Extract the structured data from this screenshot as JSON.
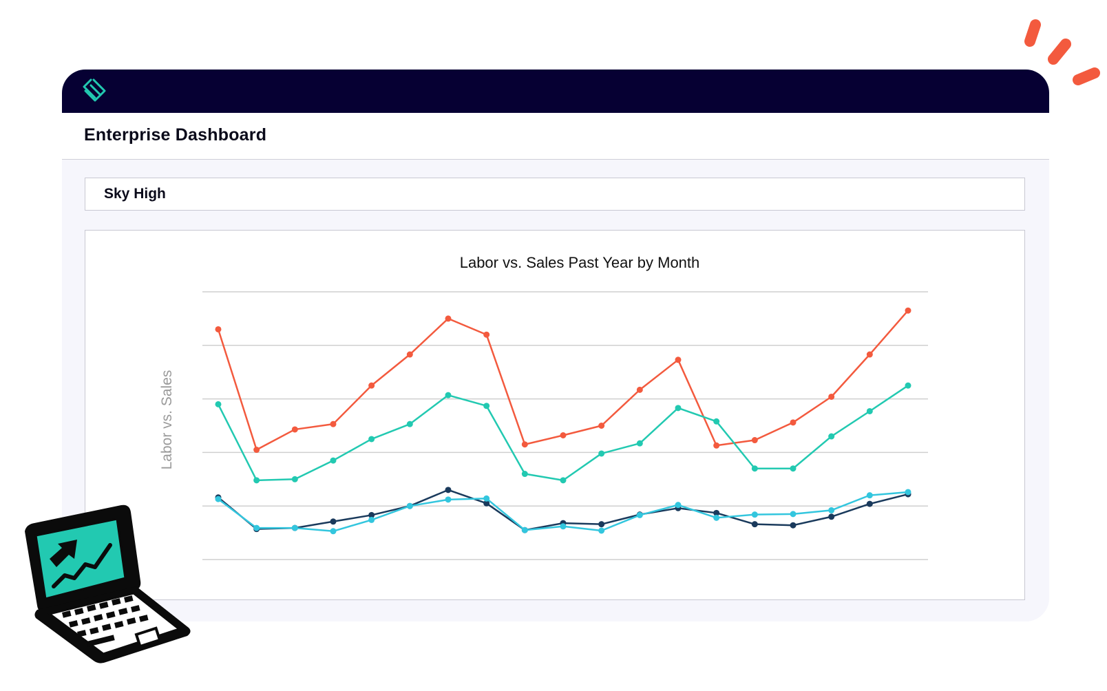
{
  "header": {
    "logo_icon": "diamond-logo-icon",
    "title": "Enterprise Dashboard"
  },
  "location": {
    "name": "Sky High"
  },
  "colors": {
    "topbar": "#060033",
    "series_sales": "#f35a3e",
    "series_teal": "#22c9b1",
    "series_navy": "#1a3a5c",
    "series_cyan": "#33c6de",
    "accent_orange": "#f35a3e"
  },
  "decorations": {
    "laptop_icon": "laptop-trend-up-icon",
    "burst_icon": "orange-burst-icon"
  },
  "chart_data": {
    "type": "line",
    "title": "Labor vs. Sales Past Year by Month",
    "ylabel": "Labor vs. Sales",
    "xlabel": "",
    "ylim": [
      0,
      5
    ],
    "grid": true,
    "legend": "none",
    "x": [
      1,
      2,
      3,
      4,
      5,
      6,
      7,
      8,
      9,
      10,
      11,
      12,
      13,
      14,
      15,
      16,
      17,
      18,
      19
    ],
    "series": [
      {
        "color": "#f35a3e",
        "values": [
          4.3,
          2.05,
          2.43,
          2.53,
          3.25,
          3.83,
          4.5,
          4.2,
          2.15,
          2.32,
          2.5,
          3.17,
          3.73,
          2.13,
          2.23,
          2.56,
          3.04,
          3.83,
          4.65
        ]
      },
      {
        "color": "#22c9b1",
        "values": [
          2.9,
          1.48,
          1.5,
          1.85,
          2.25,
          2.53,
          3.07,
          2.87,
          1.6,
          1.48,
          1.98,
          2.17,
          2.83,
          2.58,
          1.7,
          1.7,
          2.3,
          2.77,
          3.25
        ]
      },
      {
        "color": "#1a3a5c",
        "values": [
          1.16,
          0.57,
          0.59,
          0.71,
          0.83,
          1.0,
          1.3,
          1.05,
          0.55,
          0.68,
          0.66,
          0.84,
          0.96,
          0.87,
          0.66,
          0.64,
          0.8,
          1.04,
          1.22
        ]
      },
      {
        "color": "#33c6de",
        "values": [
          1.13,
          0.59,
          0.59,
          0.53,
          0.74,
          1.0,
          1.12,
          1.14,
          0.55,
          0.62,
          0.54,
          0.83,
          1.02,
          0.78,
          0.84,
          0.85,
          0.92,
          1.2,
          1.26
        ]
      }
    ]
  }
}
